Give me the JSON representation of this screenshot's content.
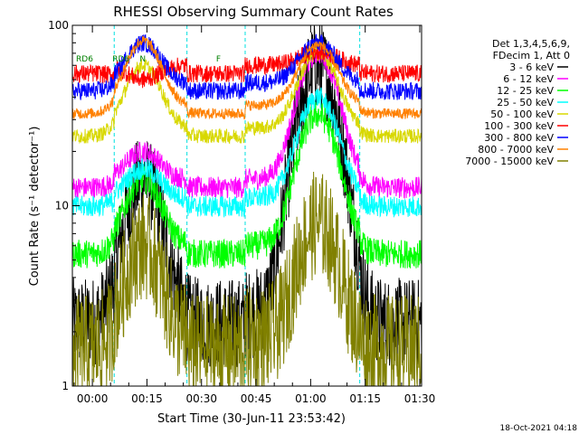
{
  "chart_data": {
    "type": "line",
    "title": "RHESSI Observing Summary Count Rates",
    "xlabel": "Start Time (30-Jun-11 23:53:42)",
    "ylabel": "Count Rate (s⁻¹ detector⁻¹)",
    "yscale": "log",
    "ylim": [
      1,
      100
    ],
    "xlim_minutes": [
      -5.5,
      90.5
    ],
    "x_ticks": [
      {
        "minute": 0,
        "label": "00:00"
      },
      {
        "minute": 15,
        "label": "00:15"
      },
      {
        "minute": 30,
        "label": "00:30"
      },
      {
        "minute": 45,
        "label": "00:45"
      },
      {
        "minute": 60,
        "label": "01:00"
      },
      {
        "minute": 75,
        "label": "01:15"
      },
      {
        "minute": 90,
        "label": "01:30"
      }
    ],
    "y_ticks": [
      {
        "value": 1,
        "label": "1"
      },
      {
        "value": 10,
        "label": "10"
      },
      {
        "value": 100,
        "label": "100"
      }
    ],
    "legend_header": [
      "Det 1,3,4,5,6,9,",
      "FDecim 1, Att 0"
    ],
    "legend_position": "right",
    "series": [
      {
        "name": "3 - 6 keV",
        "color": "#000000",
        "baseline": 2.5,
        "peak1": 14,
        "peak2": 60,
        "noise": 0.25
      },
      {
        "name": "6 - 12 keV",
        "color": "#ff00ff",
        "baseline": 14,
        "peak1": 20,
        "peak2": 70,
        "noise": 0.06
      },
      {
        "name": "12 - 25 keV",
        "color": "#00ff00",
        "baseline": 6,
        "peak1": 14,
        "peak2": 32,
        "noise": 0.08
      },
      {
        "name": "25 - 50 keV",
        "color": "#00ffff",
        "baseline": 11,
        "peak1": 16,
        "peak2": 40,
        "noise": 0.06
      },
      {
        "name": "50 - 100 keV",
        "color": "#d8d800",
        "baseline": 27,
        "peak1": 60,
        "peak2": 70,
        "noise": 0.04
      },
      {
        "name": "100 - 300 keV",
        "color": "#ff0000",
        "baseline": 60,
        "peak1": 50,
        "peak2": 72,
        "noise": 0.05
      },
      {
        "name": "300 - 800 keV",
        "color": "#0000ff",
        "baseline": 48,
        "peak1": 80,
        "peak2": 80,
        "noise": 0.05
      },
      {
        "name": "800 - 7000 keV",
        "color": "#ff8000",
        "baseline": 36,
        "peak1": 82,
        "peak2": 78,
        "noise": 0.03
      },
      {
        "name": "7000 - 15000 keV",
        "color": "#808000",
        "baseline": 1.8,
        "peak1": 6,
        "peak2": 8,
        "noise": 0.3
      }
    ],
    "night_intervals": [
      [
        -5.5,
        6
      ],
      [
        26,
        42
      ],
      [
        73.5,
        90.5
      ]
    ],
    "saa_intervals": [],
    "flags": [
      {
        "label": "RD6",
        "minute": -4.5
      },
      {
        "label": "RD6",
        "minute": 5.5
      },
      {
        "label": "N",
        "minute": 13
      },
      {
        "label": "F",
        "minute": 34
      }
    ]
  },
  "footer": {
    "timestamp": "18-Oct-2021 04:18"
  }
}
